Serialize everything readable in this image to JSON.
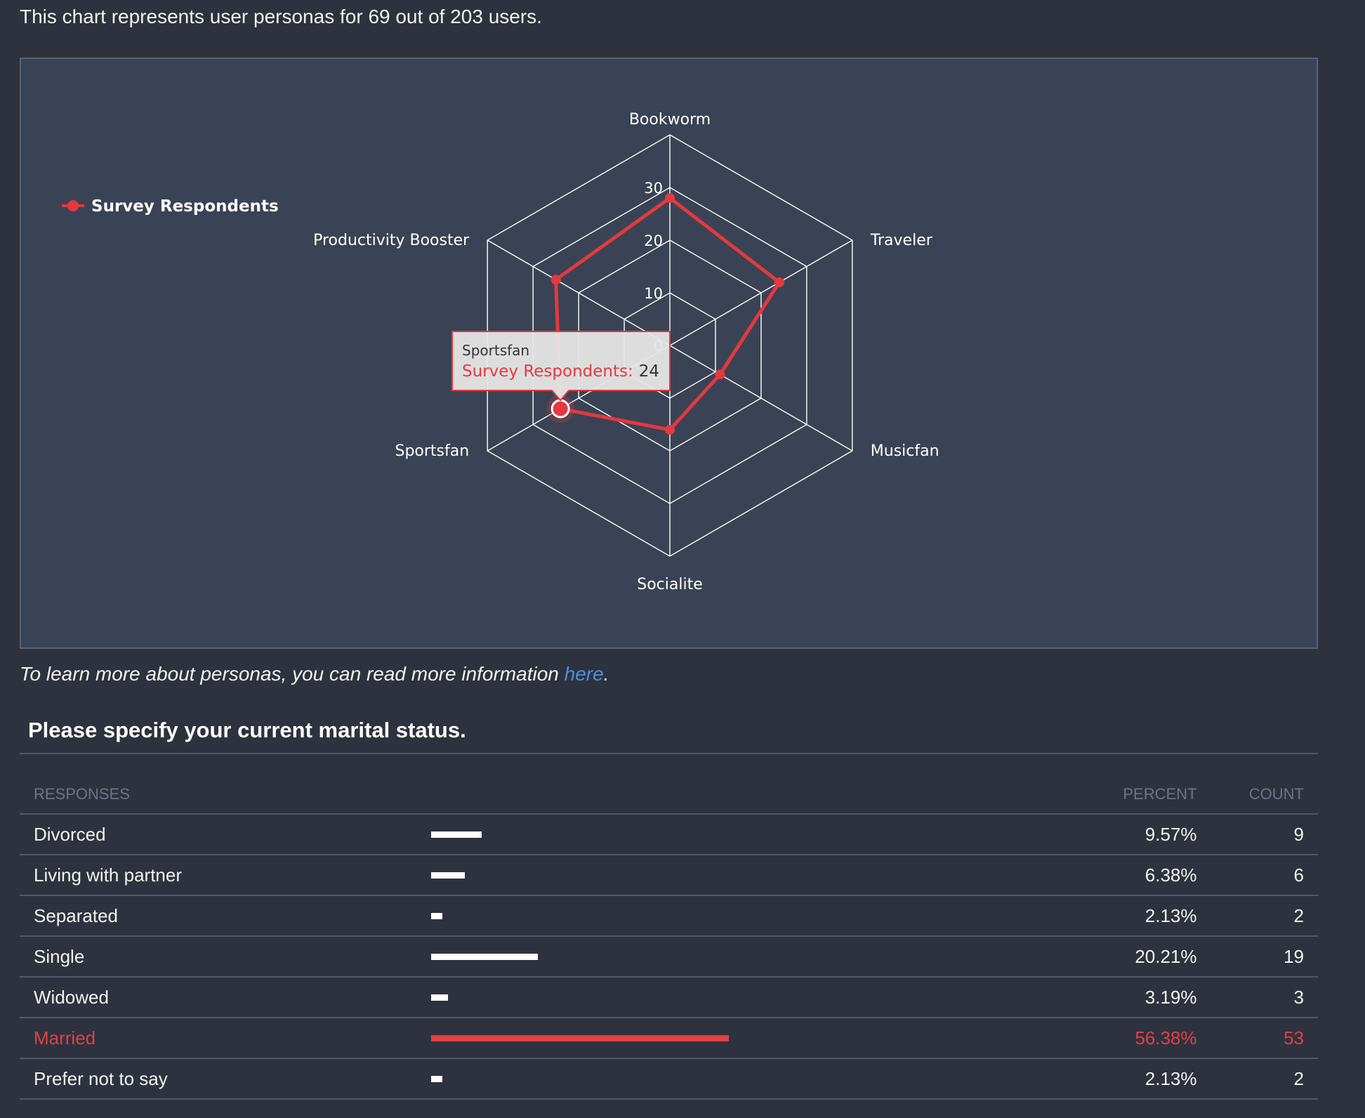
{
  "intro_text": "This chart represents user personas for 69 out of 203 users.",
  "chart_data": {
    "type": "radar",
    "axes": [
      "Bookworm",
      "Traveler",
      "Musicfan",
      "Socialite",
      "Sportsfan",
      "Productivity Booster"
    ],
    "ticks": [
      0,
      10,
      20,
      30
    ],
    "range": [
      0,
      40
    ],
    "series": [
      {
        "name": "Survey Respondents",
        "color": "#e3393f",
        "values": [
          28,
          24,
          11,
          16,
          24,
          25
        ]
      }
    ],
    "legend_position": "top-left",
    "tooltip": {
      "category": "Sportsfan",
      "series": "Survey Respondents",
      "separator": ":",
      "value": "24"
    }
  },
  "learn_more": {
    "text": "To learn more about personas, you can read more information ",
    "link_text": "here",
    "suffix": "."
  },
  "question": {
    "title": "Please specify your current marital status.",
    "headers": {
      "responses": "RESPONSES",
      "percent": "PERCENT",
      "count": "COUNT"
    },
    "rows": [
      {
        "label": "Divorced",
        "percent": "9.57%",
        "count": "9",
        "fraction": 0.0957,
        "highlight": false
      },
      {
        "label": "Living with partner",
        "percent": "6.38%",
        "count": "6",
        "fraction": 0.0638,
        "highlight": false
      },
      {
        "label": "Separated",
        "percent": "2.13%",
        "count": "2",
        "fraction": 0.0213,
        "highlight": false
      },
      {
        "label": "Single",
        "percent": "20.21%",
        "count": "19",
        "fraction": 0.2021,
        "highlight": false
      },
      {
        "label": "Widowed",
        "percent": "3.19%",
        "count": "3",
        "fraction": 0.0319,
        "highlight": false
      },
      {
        "label": "Married",
        "percent": "56.38%",
        "count": "53",
        "fraction": 0.5638,
        "highlight": true
      },
      {
        "label": "Prefer not to say",
        "percent": "2.13%",
        "count": "2",
        "fraction": 0.0213,
        "highlight": false
      }
    ]
  }
}
